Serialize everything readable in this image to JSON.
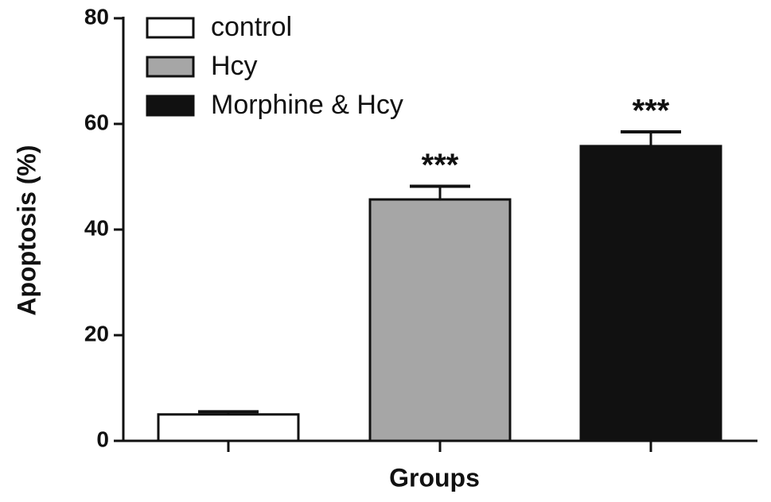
{
  "chart_data": {
    "type": "bar",
    "categories": [
      null,
      null,
      null
    ],
    "values": [
      5,
      45.7,
      55.8
    ],
    "errors": [
      0.5,
      2.5,
      2.7
    ],
    "colors": [
      "#ffffff",
      "#a6a6a6",
      "#111111"
    ],
    "legend": [
      "control",
      "Hcy",
      "Morphine & Hcy"
    ],
    "annotations": [
      null,
      "***",
      "***"
    ],
    "xlabel": "Groups",
    "ylabel": "Apoptosis (%)",
    "ylim": [
      0,
      80
    ],
    "yticks": [
      0,
      20,
      40,
      60,
      80
    ]
  }
}
